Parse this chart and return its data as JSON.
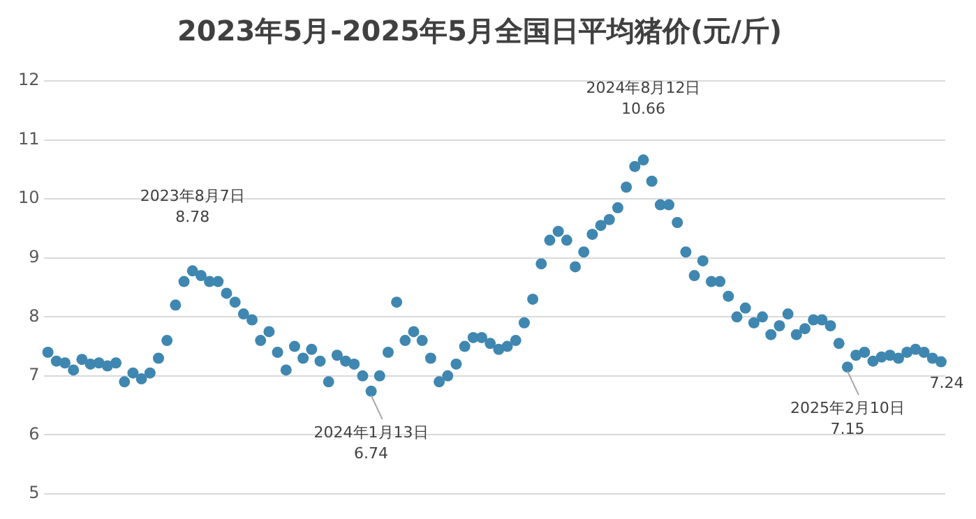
{
  "chart_data": {
    "type": "scatter",
    "title": "2023年5月-2025年5月全国日平均猪价(元/斤)",
    "marker": "circle",
    "grid": "y",
    "tick_labels": "y",
    "ylim": [
      5,
      12
    ],
    "yticks": [
      5,
      6,
      7,
      8,
      9,
      10,
      11,
      12
    ],
    "categories": [
      null,
      null,
      null,
      null,
      null,
      null,
      null,
      null,
      null,
      null,
      null,
      null,
      null,
      null,
      null,
      null,
      null,
      null,
      null,
      null,
      null,
      null,
      null,
      null,
      null,
      null,
      null,
      null,
      null,
      null,
      null,
      null,
      null,
      null,
      null,
      null,
      null,
      null,
      null,
      null,
      null,
      null,
      null,
      null,
      null,
      null,
      null,
      null,
      null,
      null,
      null,
      null,
      null,
      null,
      null,
      null,
      null,
      null,
      null,
      null,
      null,
      null,
      null,
      null,
      null,
      null,
      null,
      null,
      null,
      null,
      null,
      null,
      null,
      null,
      null,
      null,
      null,
      null,
      null,
      null,
      null,
      null,
      null,
      null,
      null,
      null,
      null,
      null,
      null,
      null,
      null,
      null,
      null,
      null,
      null,
      null,
      null,
      null,
      null,
      null,
      null,
      null,
      null,
      null,
      null,
      null
    ],
    "series": [
      {
        "color": "#3f87b0",
        "values": [
          7.4,
          7.25,
          7.22,
          7.1,
          7.28,
          7.2,
          7.22,
          7.17,
          7.22,
          6.9,
          7.05,
          6.95,
          7.05,
          7.3,
          7.6,
          8.2,
          8.6,
          8.78,
          8.7,
          8.6,
          8.6,
          8.4,
          8.25,
          8.05,
          7.95,
          7.6,
          7.75,
          7.4,
          7.1,
          7.5,
          7.3,
          7.45,
          7.25,
          6.9,
          7.35,
          7.25,
          7.2,
          7.0,
          6.74,
          7.0,
          7.4,
          8.25,
          7.6,
          7.75,
          7.6,
          7.3,
          6.9,
          7.0,
          7.2,
          7.5,
          7.65,
          7.65,
          7.55,
          7.45,
          7.5,
          7.6,
          7.9,
          8.3,
          8.9,
          9.3,
          9.45,
          9.3,
          8.85,
          9.1,
          9.4,
          9.55,
          9.65,
          9.85,
          10.2,
          10.55,
          10.66,
          10.3,
          9.9,
          9.9,
          9.6,
          9.1,
          8.7,
          8.95,
          8.6,
          8.6,
          8.35,
          8.0,
          8.15,
          7.9,
          8.0,
          7.7,
          7.85,
          8.05,
          7.7,
          7.8,
          7.95,
          7.95,
          7.85,
          7.55,
          7.15,
          7.35,
          7.4,
          7.25,
          7.32,
          7.35,
          7.3,
          7.4,
          7.45,
          7.4,
          7.3,
          7.24
        ]
      }
    ],
    "annotations": [
      {
        "text": "2023年8月7日\n8.78",
        "y": 8.78
      },
      {
        "text": "2024年1月13日\n6.74",
        "y": 6.74
      },
      {
        "text": "2024年8月12日\n10.66",
        "y": 10.66
      },
      {
        "text": "2025年2月10日\n7.15",
        "y": 7.15
      },
      {
        "text": "7.24",
        "y": 7.24
      }
    ]
  }
}
